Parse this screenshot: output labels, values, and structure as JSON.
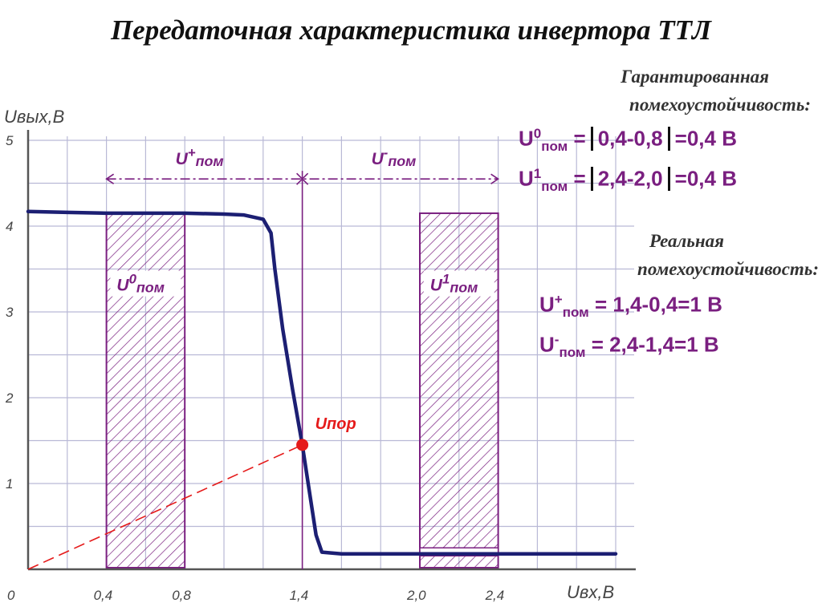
{
  "title": "Передаточная характеристика инвертора ТТЛ",
  "guaranteed": {
    "heading_line1": "Гарантированная",
    "heading_line2": "помехоустойчивость:",
    "row0": {
      "u": "U",
      "sup": "0",
      "sub": "пом",
      "eq": "=",
      "range": "0,4-0,8",
      "result": "=0,4 В"
    },
    "row1": {
      "u": "U",
      "sup": "1",
      "sub": "пом",
      "eq": "=",
      "range": "2,4-2,0",
      "result": "=0,4 В"
    }
  },
  "real": {
    "heading_line1": "Реальная",
    "heading_line2": "помехоустойчивость:",
    "row_plus": {
      "u": "U",
      "sup": "+",
      "sub": "пом",
      "expr": " = 1,4-0,4=1 В"
    },
    "row_minus": {
      "u": "U",
      "sup": "-",
      "sub": "пом",
      "expr": " = 2,4-1,4=1 В"
    }
  },
  "colors": {
    "curve": "#1c1f73",
    "purple": "#7a1f80",
    "threshold": "#e51a1a",
    "grid": "#b9b9d6",
    "axis": "#555555"
  },
  "chart_data": {
    "type": "line",
    "xlabel": "Uвх,В",
    "ylabel": "Uвых,В",
    "xlim": [
      0,
      3.0
    ],
    "ylim": [
      0,
      5
    ],
    "x_ticks": [
      0,
      0.4,
      0.8,
      1.4,
      2.0,
      2.4
    ],
    "x_tick_labels": [
      "0",
      "0,4",
      "0,8",
      "1,4",
      "2,0",
      "2,4"
    ],
    "y_ticks": [
      1,
      2,
      3,
      4,
      5
    ],
    "y_tick_labels": [
      "1",
      "2",
      "3",
      "4",
      "5"
    ],
    "grid_step_x": 0.2,
    "grid_step_y": 0.5,
    "grid": true,
    "series": [
      {
        "values": [
          [
            0,
            4.17
          ],
          [
            0.2,
            4.16
          ],
          [
            0.4,
            4.15
          ],
          [
            0.8,
            4.15
          ],
          [
            1.0,
            4.14
          ],
          [
            1.1,
            4.13
          ],
          [
            1.2,
            4.08
          ],
          [
            1.24,
            3.92
          ],
          [
            1.26,
            3.5
          ],
          [
            1.3,
            2.8
          ],
          [
            1.35,
            2.1
          ],
          [
            1.4,
            1.45
          ],
          [
            1.43,
            1.0
          ],
          [
            1.47,
            0.4
          ],
          [
            1.5,
            0.2
          ],
          [
            1.6,
            0.18
          ],
          [
            2.0,
            0.18
          ],
          [
            3.0,
            0.18
          ]
        ]
      }
    ],
    "threshold_point": {
      "x": 1.4,
      "y": 1.45,
      "label": "Uпор"
    },
    "threshold_line": [
      [
        0,
        0
      ],
      [
        1.4,
        1.45
      ]
    ],
    "regions": [
      {
        "label_u": "U",
        "label_sup": "0",
        "label_sub": "пом",
        "x0": 0.4,
        "x1": 0.8,
        "y0": 0,
        "y1": 4.15
      },
      {
        "label_u": "U",
        "label_sup": "1",
        "label_sub": "пом",
        "x0": 2.0,
        "x1": 2.4,
        "y0": 0,
        "y1": 4.15
      }
    ],
    "margins": [
      {
        "label_u": "U",
        "label_sup": "+",
        "label_sub": "пом",
        "x0": 0.4,
        "x1": 1.4
      },
      {
        "label_u": "U",
        "label_sup": "-",
        "label_sub": "пом",
        "x0": 1.4,
        "x1": 2.4
      }
    ],
    "margin_arrow_y": 4.55
  }
}
